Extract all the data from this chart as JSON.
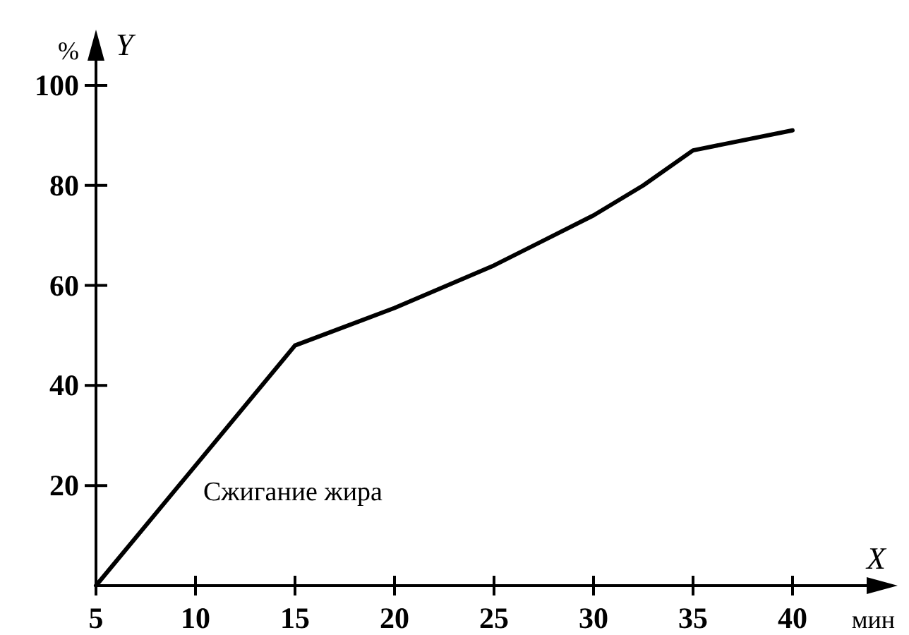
{
  "chart_data": {
    "type": "line",
    "x": [
      5,
      15,
      20,
      25,
      30,
      32.5,
      35,
      40
    ],
    "series": [
      {
        "name": "Сжигание жира",
        "color": "#000000",
        "values": [
          0,
          48,
          55.5,
          64,
          74,
          80,
          87,
          91
        ]
      }
    ],
    "xlabel": "X",
    "ylabel": "Y",
    "annotations": [
      "%",
      "мин"
    ],
    "xlim": [
      5,
      45
    ],
    "ylim": [
      0,
      110
    ],
    "xticks": [
      5,
      10,
      15,
      20,
      25,
      30,
      35,
      40
    ],
    "yticks": [
      20,
      40,
      60,
      80,
      100
    ],
    "grid": false,
    "legend": false,
    "marker": "none",
    "line_style": "solid"
  }
}
